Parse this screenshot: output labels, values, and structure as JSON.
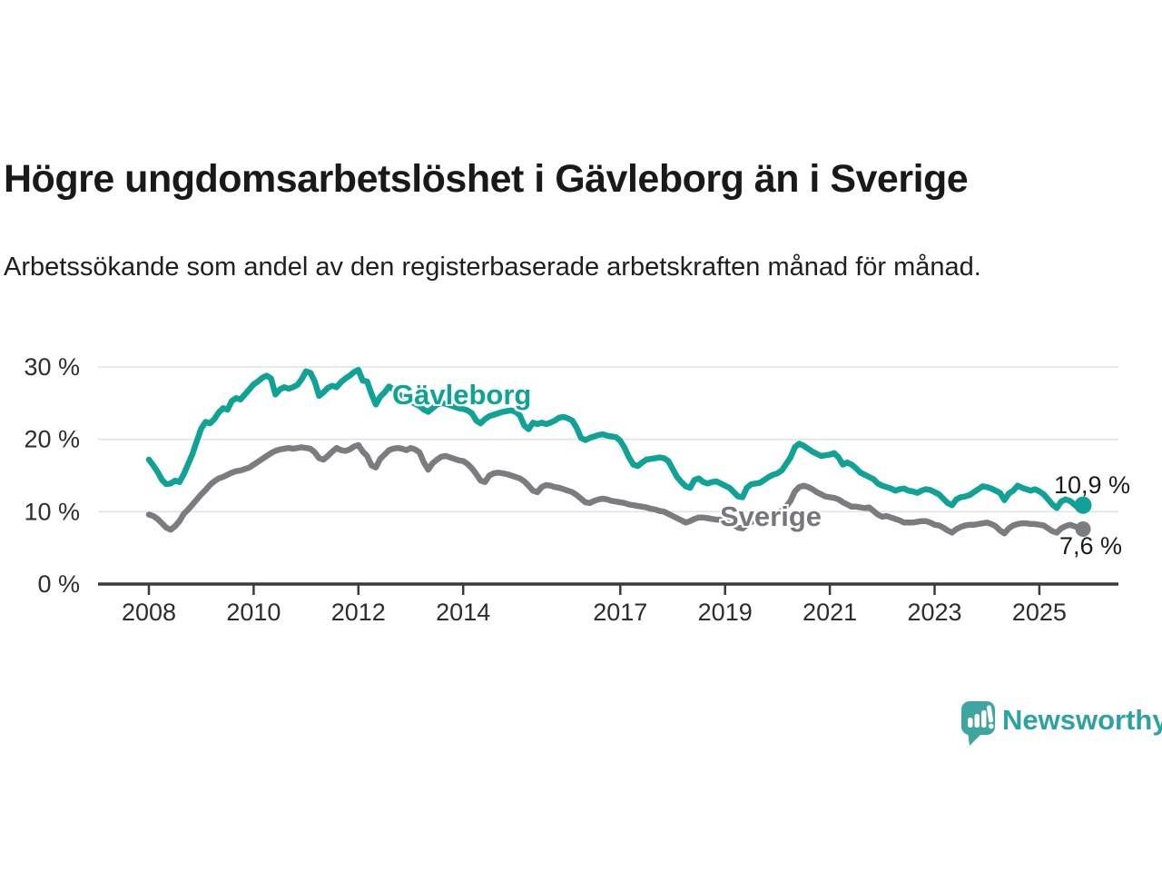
{
  "header": {
    "title": "Högre ungdomsarbetslöshet i Gävleborg än i Sverige",
    "subtitle": "Arbetssökande som andel av den registerbaserade arbetskraften månad för månad."
  },
  "colors": {
    "accent_teal": "#0fa295",
    "line_gray": "#7b7c7f",
    "gridline": "#e2e2e2",
    "axis_line": "#3a3a3a",
    "axis_text": "#2d2d2d",
    "logo_teal": "#3fa5a1",
    "logo_text": "#2ca3a1"
  },
  "annotations": {
    "gavleborg_label": "Gävleborg",
    "sverige_label": "Sverige",
    "gavleborg_end_value": "10,9 %",
    "sverige_end_value": "7,6 %"
  },
  "footer": {
    "brand": "Newsworthy"
  },
  "chart_data": {
    "type": "line",
    "title": "Högre ungdomsarbetslöshet i Gävleborg än i Sverige",
    "subtitle": "Arbetssökande som andel av den registerbaserade arbetskraften månad för månad.",
    "unit": "%",
    "x_axis": {
      "ticks": [
        {
          "label": "2008",
          "value": 2008
        },
        {
          "label": "2010",
          "value": 2010
        },
        {
          "label": "2012",
          "value": 2012
        },
        {
          "label": "2014",
          "value": 2014
        },
        {
          "label": "2017",
          "value": 2017
        },
        {
          "label": "2019",
          "value": 2019
        },
        {
          "label": "2021",
          "value": 2021
        },
        {
          "label": "2023",
          "value": 2023
        },
        {
          "label": "2025",
          "value": 2025
        }
      ],
      "range_years": [
        2007.0,
        2026.5
      ]
    },
    "y_axis": {
      "ticks": [
        {
          "label": "0 %",
          "value": 0
        },
        {
          "label": "10 %",
          "value": 10
        },
        {
          "label": "20 %",
          "value": 20
        },
        {
          "label": "30 %",
          "value": 30
        }
      ],
      "range": [
        0,
        30
      ],
      "gridlines": true
    },
    "legend_position": "inline",
    "series": [
      {
        "name": "Sverige",
        "color": "#7b7c7f",
        "start_year": 2008,
        "interval_months": 1,
        "end_label": "7,6 %",
        "last_value": 7.6,
        "values": [
          9.6,
          9.4,
          9.0,
          8.4,
          7.8,
          7.5,
          8.0,
          8.7,
          9.7,
          10.3,
          11.0,
          11.7,
          12.4,
          13.0,
          13.7,
          14.2,
          14.6,
          14.8,
          15.1,
          15.4,
          15.6,
          15.7,
          15.9,
          16.1,
          16.5,
          16.9,
          17.3,
          17.7,
          18.1,
          18.4,
          18.6,
          18.7,
          18.8,
          18.7,
          18.8,
          18.9,
          18.8,
          18.7,
          18.2,
          17.4,
          17.2,
          17.7,
          18.3,
          18.8,
          18.5,
          18.4,
          18.6,
          19.0,
          19.2,
          18.3,
          17.7,
          16.4,
          16.1,
          17.3,
          17.9,
          18.5,
          18.7,
          18.8,
          18.7,
          18.5,
          18.8,
          18.6,
          18.2,
          16.8,
          15.8,
          16.7,
          17.2,
          17.6,
          17.7,
          17.5,
          17.3,
          17.1,
          17.0,
          16.6,
          16.0,
          15.2,
          14.3,
          14.1,
          15.0,
          15.3,
          15.4,
          15.3,
          15.2,
          15.0,
          14.8,
          14.6,
          14.2,
          13.6,
          12.9,
          12.7,
          13.4,
          13.7,
          13.6,
          13.4,
          13.3,
          13.1,
          12.9,
          12.7,
          12.3,
          11.8,
          11.3,
          11.2,
          11.5,
          11.7,
          11.8,
          11.7,
          11.5,
          11.4,
          11.3,
          11.2,
          11.0,
          10.9,
          10.8,
          10.7,
          10.6,
          10.4,
          10.3,
          10.1,
          10.0,
          9.7,
          9.4,
          9.1,
          8.8,
          8.5,
          8.7,
          9.0,
          9.2,
          9.2,
          9.1,
          9.0,
          8.9,
          8.9,
          8.8,
          8.6,
          8.2,
          7.8,
          7.7,
          8.2,
          8.6,
          8.8,
          8.9,
          9.0,
          9.2,
          9.4,
          9.7,
          10.1,
          10.7,
          11.5,
          12.8,
          13.4,
          13.6,
          13.4,
          13.1,
          12.7,
          12.4,
          12.1,
          12.0,
          11.9,
          11.7,
          11.3,
          11.0,
          10.7,
          10.7,
          10.6,
          10.5,
          10.6,
          10.1,
          9.6,
          9.3,
          9.4,
          9.2,
          9.0,
          8.8,
          8.5,
          8.5,
          8.5,
          8.6,
          8.7,
          8.7,
          8.5,
          8.2,
          8.1,
          7.8,
          7.4,
          7.1,
          7.6,
          7.9,
          8.1,
          8.2,
          8.2,
          8.3,
          8.4,
          8.5,
          8.3,
          8.0,
          7.4,
          7.0,
          7.7,
          8.1,
          8.3,
          8.4,
          8.4,
          8.3,
          8.3,
          8.2,
          8.1,
          7.7,
          7.3,
          7.1,
          7.7,
          8.0,
          8.2,
          8.0,
          7.8,
          7.6
        ]
      },
      {
        "name": "Gävleborg",
        "color": "#0fa295",
        "start_year": 2008,
        "interval_months": 1,
        "end_label": "10,9 %",
        "last_value": 10.9,
        "values": [
          17.2,
          16.4,
          15.5,
          14.4,
          13.8,
          13.9,
          14.3,
          14.1,
          15.2,
          16.6,
          18.0,
          19.8,
          21.5,
          22.4,
          22.2,
          22.8,
          23.7,
          24.3,
          24.1,
          25.3,
          25.7,
          25.5,
          26.2,
          26.9,
          27.6,
          28.0,
          28.5,
          28.8,
          28.4,
          26.2,
          26.9,
          27.2,
          27.0,
          27.2,
          27.5,
          28.3,
          29.4,
          29.2,
          28.0,
          26.0,
          26.5,
          27.1,
          27.4,
          27.2,
          27.9,
          28.4,
          28.8,
          29.3,
          29.6,
          28.1,
          28.0,
          26.3,
          24.8,
          25.9,
          26.5,
          27.3,
          26.9,
          26.4,
          25.9,
          25.5,
          25.2,
          24.9,
          24.6,
          24.1,
          23.8,
          24.3,
          24.8,
          25.0,
          24.9,
          24.7,
          24.5,
          24.3,
          24.2,
          24.0,
          23.6,
          22.6,
          22.2,
          22.8,
          23.2,
          23.4,
          23.6,
          23.8,
          23.9,
          24.0,
          23.8,
          23.3,
          21.9,
          21.4,
          22.3,
          22.1,
          22.3,
          22.1,
          22.3,
          22.6,
          23.0,
          23.1,
          22.9,
          22.6,
          21.6,
          20.2,
          19.9,
          20.2,
          20.4,
          20.6,
          20.7,
          20.5,
          20.4,
          20.3,
          19.8,
          18.8,
          17.5,
          16.5,
          16.3,
          16.8,
          17.2,
          17.3,
          17.4,
          17.5,
          17.4,
          17.0,
          15.9,
          14.8,
          14.1,
          13.5,
          13.3,
          14.4,
          14.6,
          14.1,
          13.9,
          14.1,
          14.2,
          13.9,
          13.6,
          13.3,
          12.7,
          12.1,
          12.0,
          13.3,
          13.8,
          13.9,
          14.0,
          14.4,
          14.8,
          15.1,
          15.3,
          15.7,
          16.6,
          17.5,
          18.9,
          19.4,
          19.1,
          18.7,
          18.3,
          18.0,
          17.7,
          17.8,
          17.9,
          18.1,
          17.5,
          16.5,
          16.8,
          16.5,
          16.0,
          15.4,
          15.1,
          14.8,
          14.5,
          13.9,
          13.6,
          13.4,
          13.2,
          12.9,
          13.1,
          13.2,
          12.9,
          12.8,
          12.6,
          12.9,
          13.1,
          13.0,
          12.7,
          12.4,
          11.8,
          11.2,
          10.9,
          11.7,
          12.0,
          12.1,
          12.3,
          12.7,
          13.1,
          13.5,
          13.4,
          13.2,
          12.9,
          12.6,
          11.6,
          12.5,
          12.9,
          13.6,
          13.3,
          13.1,
          12.9,
          13.1,
          12.8,
          12.4,
          11.7,
          11.0,
          10.5,
          11.4,
          11.7,
          11.5,
          11.0,
          10.5,
          10.9
        ]
      }
    ]
  }
}
